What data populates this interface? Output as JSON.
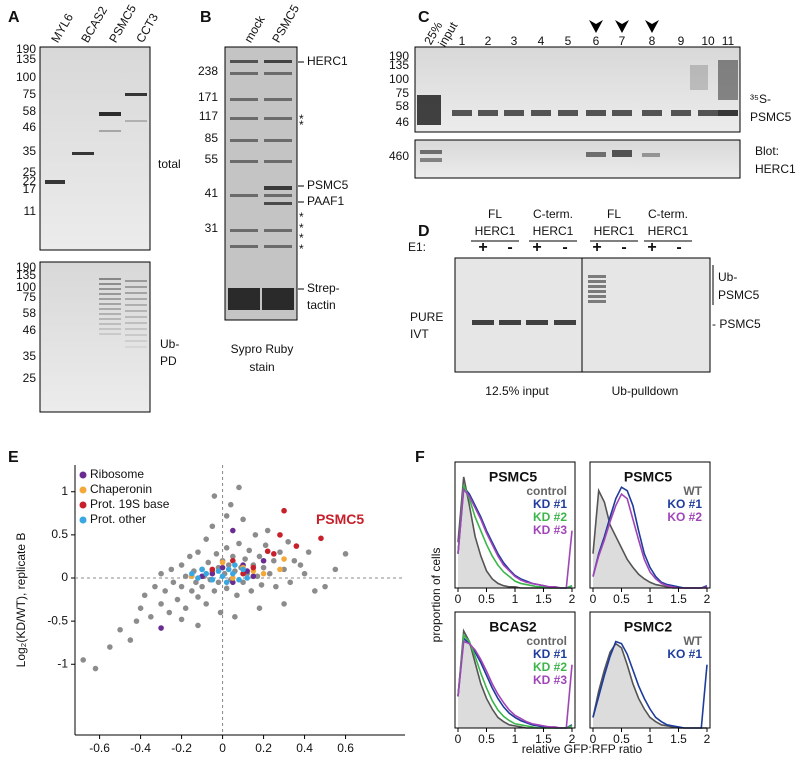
{
  "panels": {
    "A": {
      "label": "A",
      "lanes": [
        "MYL6",
        "BCAS2",
        "PSMC5",
        "CCT3"
      ],
      "mw_top": [
        190,
        135,
        100,
        75,
        58,
        46,
        35,
        25,
        22,
        17,
        11
      ],
      "right_top": "total",
      "mw_bottom": [
        190,
        135,
        100,
        75,
        58,
        46,
        35,
        25
      ],
      "right_bottom": [
        "Ub-",
        "PD"
      ]
    },
    "B": {
      "label": "B",
      "lanes": [
        "mock",
        "PSMC5"
      ],
      "mw": [
        238,
        171,
        117,
        85,
        55,
        41,
        31
      ],
      "bands": [
        "HERC1",
        "PSMC5",
        "PAAF1",
        "Strep-",
        "tactin"
      ],
      "asterisks": [
        "*",
        "*",
        "*",
        "*",
        "*",
        "*"
      ],
      "caption": [
        "Sypro Ruby",
        "stain"
      ]
    },
    "C": {
      "label": "C",
      "input": [
        "25%",
        "input"
      ],
      "lanes": [
        "1",
        "2",
        "3",
        "4",
        "5",
        "6",
        "7",
        "8",
        "9",
        "10",
        "11"
      ],
      "mw_top": [
        190,
        135,
        100,
        75,
        58,
        46
      ],
      "right_top": [
        "³⁵S-",
        "PSMC5"
      ],
      "mw_bottom": [
        460
      ],
      "right_bottom": [
        "Blot:",
        "HERC1"
      ]
    },
    "D": {
      "label": "D",
      "groups": [
        [
          "FL",
          "HERC1"
        ],
        [
          "C-term.",
          "HERC1"
        ],
        [
          "FL",
          "HERC1"
        ],
        [
          "C-term.",
          "HERC1"
        ]
      ],
      "e1": "E1:",
      "signs": [
        "+",
        "-",
        "+",
        "-",
        "+",
        "-",
        "+",
        "-"
      ],
      "left": [
        "PURE",
        "IVT"
      ],
      "right": [
        "Ub-",
        "PSMC5",
        "- PSMC5"
      ],
      "bottom": [
        "12.5% input",
        "Ub-pulldown"
      ]
    },
    "E": {
      "label": "E"
    },
    "F": {
      "label": "F",
      "ylabel": "proportion of cells",
      "xlabel": "relative GFP:RFP ratio"
    }
  },
  "chart_data": [
    {
      "type": "scatter",
      "xlabel": "Log₂(KD/WT), replicate A",
      "ylabel": "Log₂(KD/WT), replicate B",
      "xlim": [
        -0.72,
        0.89
      ],
      "ylim": [
        -1.82,
        1.31
      ],
      "xticks": [
        -0.6,
        -0.4,
        -0.2,
        0,
        0.2,
        0.4,
        0.6
      ],
      "yticks": [
        -1,
        -0.5,
        0,
        0.5,
        1
      ],
      "legend": "upper left",
      "annotation": "PSMC5",
      "series": [
        {
          "color": "#8c8c8c",
          "x": [
            -0.68,
            -0.62,
            -0.55,
            -0.5,
            -0.45,
            -0.42,
            -0.4,
            -0.38,
            -0.35,
            -0.33,
            -0.3,
            -0.3,
            -0.28,
            -0.26,
            -0.25,
            -0.24,
            -0.22,
            -0.2,
            -0.2,
            -0.18,
            -0.18,
            -0.16,
            -0.15,
            -0.14,
            -0.13,
            -0.12,
            -0.12,
            -0.1,
            -0.1,
            -0.09,
            -0.08,
            -0.08,
            -0.07,
            -0.06,
            -0.05,
            -0.05,
            -0.04,
            -0.03,
            -0.02,
            -0.02,
            -0.01,
            0,
            0.01,
            0.02,
            0.02,
            0.03,
            0.04,
            0.04,
            0.05,
            0.06,
            0.07,
            0.08,
            0.08,
            0.09,
            0.1,
            0.11,
            0.12,
            0.13,
            0.14,
            0.15,
            0.16,
            0.17,
            0.18,
            0.19,
            0.2,
            0.21,
            0.22,
            0.23,
            0.25,
            0.26,
            0.28,
            0.3,
            0.32,
            0.33,
            0.35,
            0.38,
            0.4,
            0.42,
            0.45,
            0.5,
            0.55,
            0.6,
            0.02,
            0.1,
            -0.04,
            0.3,
            0.18,
            0.06,
            -0.12,
            -0.2
          ],
          "y": [
            -0.95,
            -1.05,
            -0.8,
            -0.6,
            -0.72,
            -0.5,
            -0.35,
            -0.2,
            -0.45,
            -0.1,
            -0.3,
            0.05,
            -0.15,
            -0.4,
            0.1,
            -0.05,
            -0.25,
            0.15,
            -0.1,
            0.02,
            -0.35,
            0.25,
            -0.15,
            0.08,
            -0.05,
            0.3,
            -0.22,
            0.1,
            -0.1,
            0.02,
            0.45,
            -0.3,
            0.18,
            -0.02,
            0.6,
            0.08,
            -0.15,
            0.28,
            0.12,
            -0.05,
            -0.4,
            0.2,
            0.05,
            0.35,
            -0.12,
            0.15,
            0.85,
            -0.02,
            0.25,
            0.08,
            -0.2,
            1.05,
            0.4,
            0.12,
            -0.05,
            0.22,
            0.05,
            0.32,
            -0.15,
            0.15,
            0.5,
            0.02,
            0.25,
            -0.08,
            0.12,
            0.38,
            0.55,
            0.05,
            0.2,
            -0.1,
            0.3,
            0.1,
            0.42,
            -0.05,
            0.2,
            0.15,
            0.05,
            0.3,
            -0.15,
            -0.1,
            0.1,
            0.28,
            0.72,
            0.68,
            0.95,
            -0.3,
            -0.35,
            -0.45,
            -0.55,
            -0.48
          ]
        },
        {
          "name": "Ribosome",
          "color": "#6a2c91",
          "x": [
            -0.3,
            -0.05,
            0,
            0.05,
            0.1,
            0.15,
            0.2,
            0.05,
            -0.1,
            0.12
          ],
          "y": [
            -0.58,
            0.05,
            0.12,
            -0.05,
            0.15,
            0.02,
            0.2,
            0.55,
            0.02,
            0.08
          ]
        },
        {
          "name": "Chaperonin",
          "color": "#f5a83a",
          "x": [
            -0.15,
            0,
            0.1,
            0.15,
            0.2,
            0.28,
            0.05,
            0.3
          ],
          "y": [
            0.02,
            0.18,
            0.12,
            0.08,
            0.05,
            0.1,
            0,
            0.22
          ]
        },
        {
          "name": "Prot. 19S base",
          "color": "#c8202a",
          "x": [
            0.48,
            0.3,
            0.28,
            0.36,
            0.22,
            0.25,
            0.05,
            0.15,
            -0.05,
            0.1
          ],
          "y": [
            0.46,
            0.78,
            0.5,
            0.37,
            0.31,
            0.28,
            0.2,
            0.12,
            0.1,
            0.05
          ]
        },
        {
          "name": "Prot. other",
          "color": "#3aa8e0",
          "x": [
            -0.12,
            -0.08,
            -0.05,
            -0.02,
            0,
            0.03,
            0.05,
            0.08,
            0.12,
            0.1,
            -0.1,
            0.02,
            -0.15,
            0.06
          ],
          "y": [
            0,
            0.05,
            -0.02,
            0.08,
            0.02,
            0.1,
            0.05,
            -0.02,
            0,
            0.1,
            0.1,
            -0.05,
            0.05,
            0.15
          ]
        }
      ]
    },
    {
      "type": "histogram-line",
      "title": "PSMC5",
      "xlim": [
        0,
        2
      ],
      "ylim": [
        0,
        1.1
      ],
      "xticks": [
        0,
        0.5,
        1,
        1.5,
        2
      ],
      "x": [
        0,
        0.1,
        0.2,
        0.3,
        0.4,
        0.5,
        0.6,
        0.7,
        0.8,
        0.9,
        1,
        1.1,
        1.2,
        1.3,
        1.4,
        1.5,
        1.6,
        1.7,
        1.8,
        1.9,
        2
      ],
      "series": [
        {
          "name": "control",
          "color": "#555555",
          "filled": true,
          "values": [
            0.4,
            0.97,
            0.72,
            0.45,
            0.28,
            0.15,
            0.08,
            0.04,
            0.02,
            0.01,
            0.01,
            0,
            0,
            0,
            0,
            0,
            0,
            0,
            0,
            0,
            0
          ]
        },
        {
          "name": "KD #1",
          "color": "#1f3c9c",
          "values": [
            0.3,
            0.88,
            0.82,
            0.72,
            0.62,
            0.5,
            0.4,
            0.3,
            0.22,
            0.16,
            0.11,
            0.08,
            0.06,
            0.04,
            0.03,
            0.02,
            0.01,
            0.01,
            0,
            0,
            0.02
          ]
        },
        {
          "name": "KD #2",
          "color": "#3cb54a",
          "values": [
            0.3,
            0.9,
            0.78,
            0.62,
            0.5,
            0.38,
            0.28,
            0.2,
            0.14,
            0.1,
            0.06,
            0.04,
            0.03,
            0.02,
            0.01,
            0.01,
            0,
            0,
            0,
            0,
            0.02
          ]
        },
        {
          "name": "KD #3",
          "color": "#a045b8",
          "values": [
            0.3,
            0.86,
            0.8,
            0.7,
            0.6,
            0.48,
            0.38,
            0.28,
            0.2,
            0.15,
            0.1,
            0.07,
            0.05,
            0.04,
            0.03,
            0.02,
            0.01,
            0.01,
            0,
            0,
            0.5
          ]
        }
      ]
    },
    {
      "type": "histogram-line",
      "title": "PSMC5",
      "xlim": [
        0,
        2
      ],
      "ylim": [
        0,
        1.1
      ],
      "xticks": [
        0,
        0.5,
        1,
        1.5,
        2
      ],
      "x": [
        0,
        0.1,
        0.2,
        0.3,
        0.4,
        0.5,
        0.6,
        0.7,
        0.8,
        0.9,
        1,
        1.1,
        1.2,
        1.3,
        1.4,
        1.5,
        1.6,
        1.7,
        1.8,
        1.9,
        2
      ],
      "series": [
        {
          "name": "WT",
          "color": "#555555",
          "filled": true,
          "values": [
            0.3,
            0.85,
            0.75,
            0.55,
            0.45,
            0.35,
            0.25,
            0.18,
            0.12,
            0.08,
            0.05,
            0.03,
            0.02,
            0.01,
            0,
            0,
            0,
            0,
            0,
            0,
            0
          ]
        },
        {
          "name": "KO #1",
          "color": "#1f3c9c",
          "values": [
            0.1,
            0.3,
            0.45,
            0.62,
            0.78,
            0.88,
            0.85,
            0.72,
            0.5,
            0.3,
            0.18,
            0.1,
            0.05,
            0.03,
            0.02,
            0.01,
            0,
            0,
            0,
            0,
            0.02
          ]
        },
        {
          "name": "KO #2",
          "color": "#a045b8",
          "values": [
            0.1,
            0.28,
            0.42,
            0.58,
            0.72,
            0.82,
            0.78,
            0.6,
            0.42,
            0.25,
            0.14,
            0.08,
            0.04,
            0.02,
            0.01,
            0,
            0,
            0,
            0,
            0,
            0.01
          ]
        }
      ]
    },
    {
      "type": "histogram-line",
      "title": "BCAS2",
      "xlim": [
        0,
        2
      ],
      "ylim": [
        0,
        1.1
      ],
      "xticks": [
        0,
        0.5,
        1,
        1.5,
        2
      ],
      "x": [
        0,
        0.1,
        0.2,
        0.3,
        0.4,
        0.5,
        0.6,
        0.7,
        0.8,
        0.9,
        1,
        1.1,
        1.2,
        1.3,
        1.4,
        1.5,
        1.6,
        1.7,
        1.8,
        1.9,
        2
      ],
      "series": [
        {
          "name": "control",
          "color": "#555555",
          "filled": true,
          "values": [
            0.3,
            0.92,
            0.82,
            0.62,
            0.42,
            0.28,
            0.18,
            0.1,
            0.06,
            0.03,
            0.02,
            0.01,
            0,
            0,
            0,
            0,
            0,
            0,
            0,
            0,
            0
          ]
        },
        {
          "name": "KD #1",
          "color": "#1f3c9c",
          "values": [
            0.3,
            0.85,
            0.8,
            0.72,
            0.62,
            0.5,
            0.38,
            0.28,
            0.2,
            0.14,
            0.1,
            0.07,
            0.05,
            0.03,
            0.02,
            0.01,
            0.01,
            0,
            0,
            0,
            0.03
          ]
        },
        {
          "name": "KD #2",
          "color": "#3cb54a",
          "values": [
            0.3,
            0.88,
            0.82,
            0.68,
            0.52,
            0.38,
            0.26,
            0.17,
            0.11,
            0.07,
            0.04,
            0.03,
            0.02,
            0.01,
            0,
            0,
            0,
            0,
            0,
            0,
            0.02
          ]
        },
        {
          "name": "KD #3",
          "color": "#a045b8",
          "values": [
            0.3,
            0.82,
            0.8,
            0.74,
            0.65,
            0.54,
            0.42,
            0.32,
            0.24,
            0.17,
            0.12,
            0.09,
            0.06,
            0.04,
            0.03,
            0.02,
            0.01,
            0.01,
            0,
            0,
            0.6
          ]
        }
      ]
    },
    {
      "type": "histogram-line",
      "title": "PSMC2",
      "xlim": [
        0,
        2
      ],
      "ylim": [
        0,
        1.1
      ],
      "xticks": [
        0,
        0.5,
        1,
        1.5,
        2
      ],
      "x": [
        0,
        0.1,
        0.2,
        0.3,
        0.4,
        0.5,
        0.6,
        0.7,
        0.8,
        0.9,
        1,
        1.1,
        1.2,
        1.3,
        1.4,
        1.5,
        1.6,
        1.7,
        1.8,
        1.9,
        2
      ],
      "series": [
        {
          "name": "WT",
          "color": "#555555",
          "filled": true,
          "values": [
            0.1,
            0.35,
            0.55,
            0.72,
            0.8,
            0.76,
            0.6,
            0.42,
            0.28,
            0.18,
            0.1,
            0.06,
            0.03,
            0.02,
            0.01,
            0,
            0,
            0,
            0,
            0,
            0
          ]
        },
        {
          "name": "KO #1",
          "color": "#1f3c9c",
          "values": [
            0.1,
            0.3,
            0.5,
            0.68,
            0.82,
            0.8,
            0.7,
            0.55,
            0.4,
            0.28,
            0.18,
            0.1,
            0.06,
            0.03,
            0.02,
            0.01,
            0,
            0,
            0,
            0,
            0.6
          ]
        }
      ]
    }
  ]
}
